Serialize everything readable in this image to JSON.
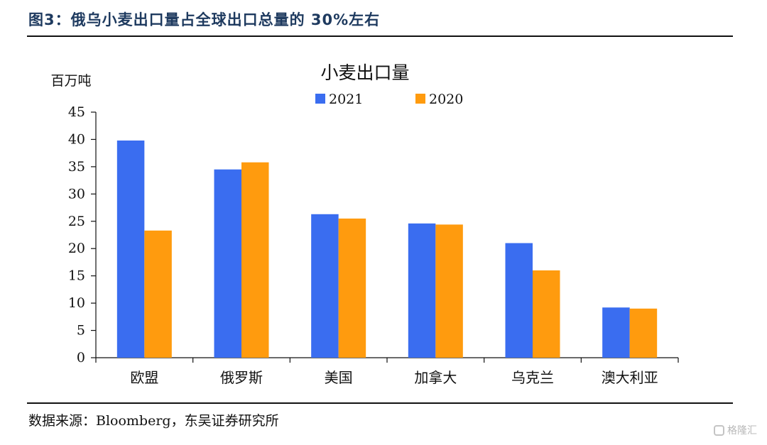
{
  "figure": {
    "title": "图3：俄乌小麦出口量占全球出口总量的 30%左右",
    "source": "数据来源：Bloomberg，东吴证券研究所",
    "watermark": "格隆汇"
  },
  "chart_data": {
    "type": "bar",
    "title": "小麦出口量",
    "xlabel": "",
    "ylabel": "百万吨",
    "ylim": [
      0,
      45
    ],
    "ytick_step": 5,
    "grid": false,
    "legend_position": "top-center",
    "categories": [
      "欧盟",
      "俄罗斯",
      "美国",
      "加拿大",
      "乌克兰",
      "澳大利亚"
    ],
    "series": [
      {
        "name": "2021",
        "color": "#3a6df0",
        "values": [
          39.8,
          34.5,
          26.3,
          24.6,
          21.0,
          9.2
        ]
      },
      {
        "name": "2020",
        "color": "#ff9b0e",
        "values": [
          23.3,
          35.8,
          25.5,
          24.4,
          16.0,
          9.0
        ]
      }
    ]
  }
}
